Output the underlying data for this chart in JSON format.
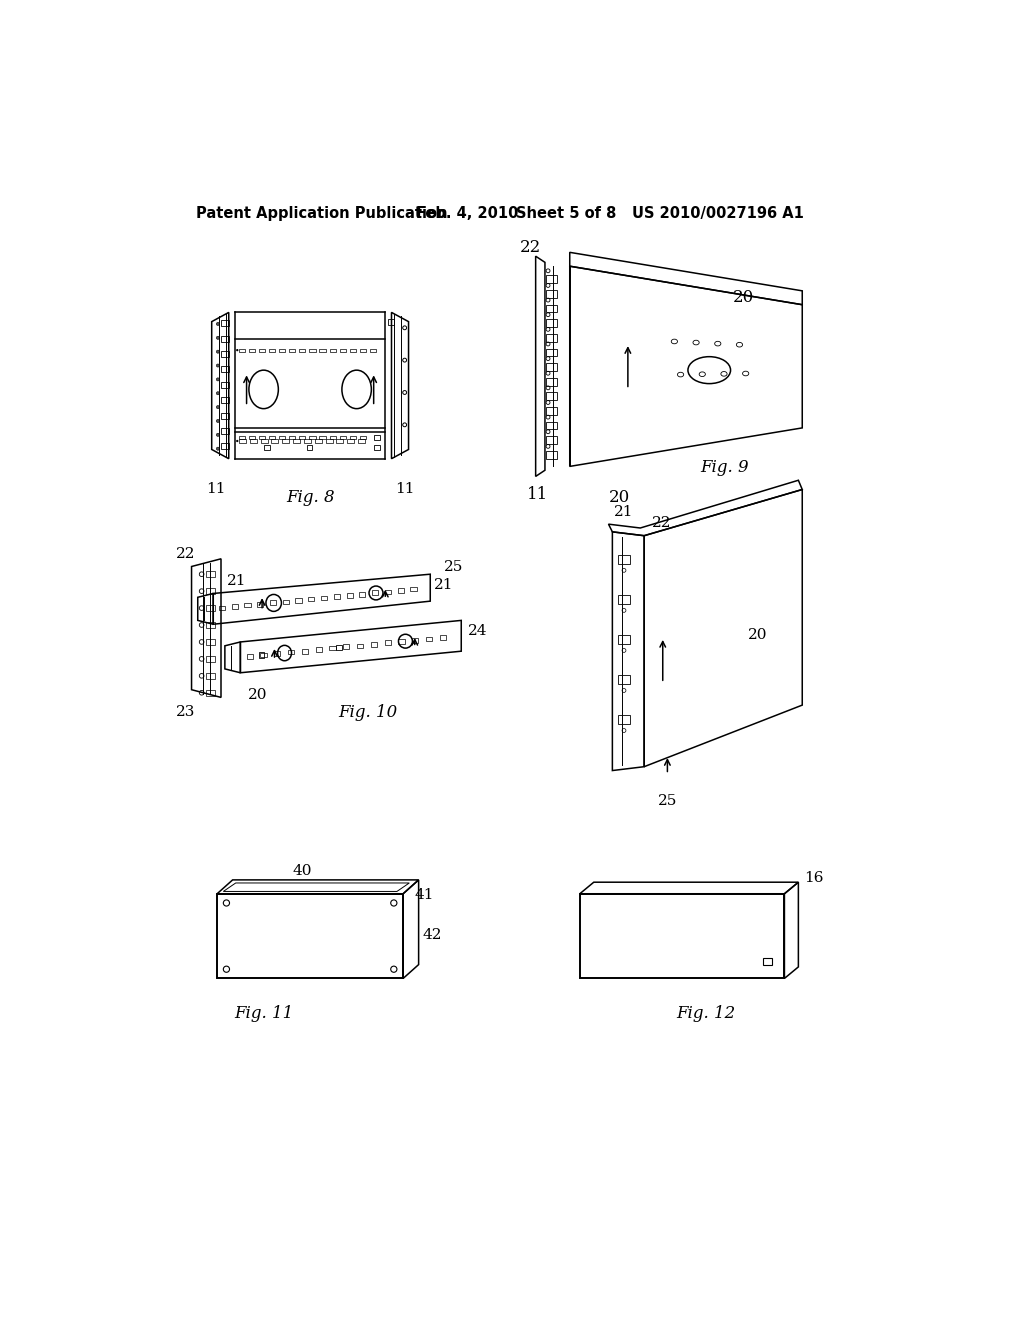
{
  "background_color": "#ffffff",
  "header_text": "Patent Application Publication",
  "header_date": "Feb. 4, 2010",
  "header_sheet": "Sheet 5 of 8",
  "header_patent": "US 2010/0027196 A1"
}
